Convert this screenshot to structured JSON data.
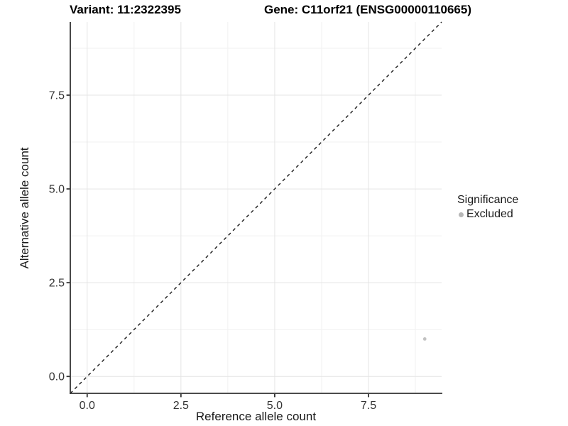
{
  "titles": {
    "variant": "Variant: 11:2322395",
    "gene": "Gene: C11orf21 (ENSG00000110665)"
  },
  "axes": {
    "x_label": "Reference allele count",
    "y_label": "Alternative allele count"
  },
  "legend": {
    "title": "Significance",
    "items": [
      {
        "label": "Excluded",
        "color": "#b7b7b7"
      }
    ]
  },
  "style": {
    "background": "#ffffff",
    "axis_line": "#333333",
    "tick_label": "#333333",
    "grid_major": "#e4e4e4",
    "grid_minor": "#f1f1f1",
    "reference_line": "#1a1a1a",
    "point_color": "#c2c2c2"
  },
  "chart_data": {
    "type": "scatter",
    "title": "Variant: 11:2322395 | Gene: C11orf21 (ENSG00000110665)",
    "xlabel": "Reference allele count",
    "ylabel": "Alternative allele count",
    "xlim": [
      -0.45,
      9.45
    ],
    "ylim": [
      -0.45,
      9.45
    ],
    "x_ticks": [
      0.0,
      2.5,
      5.0,
      7.5
    ],
    "y_ticks": [
      0.0,
      2.5,
      5.0,
      7.5
    ],
    "x_minor_ticks": [
      1.25,
      3.75,
      6.25,
      8.75
    ],
    "y_minor_ticks": [
      1.25,
      3.75,
      6.25,
      8.75
    ],
    "tick_decimals": 1,
    "grid": true,
    "legend_position": "right",
    "legend_title": "Significance",
    "reference_line": {
      "type": "abline",
      "slope": 1,
      "intercept": 0,
      "style": "dashed"
    },
    "series": [
      {
        "name": "Excluded",
        "color": "#c2c2c2",
        "points": [
          {
            "x": 9,
            "y": 1
          }
        ]
      }
    ]
  }
}
